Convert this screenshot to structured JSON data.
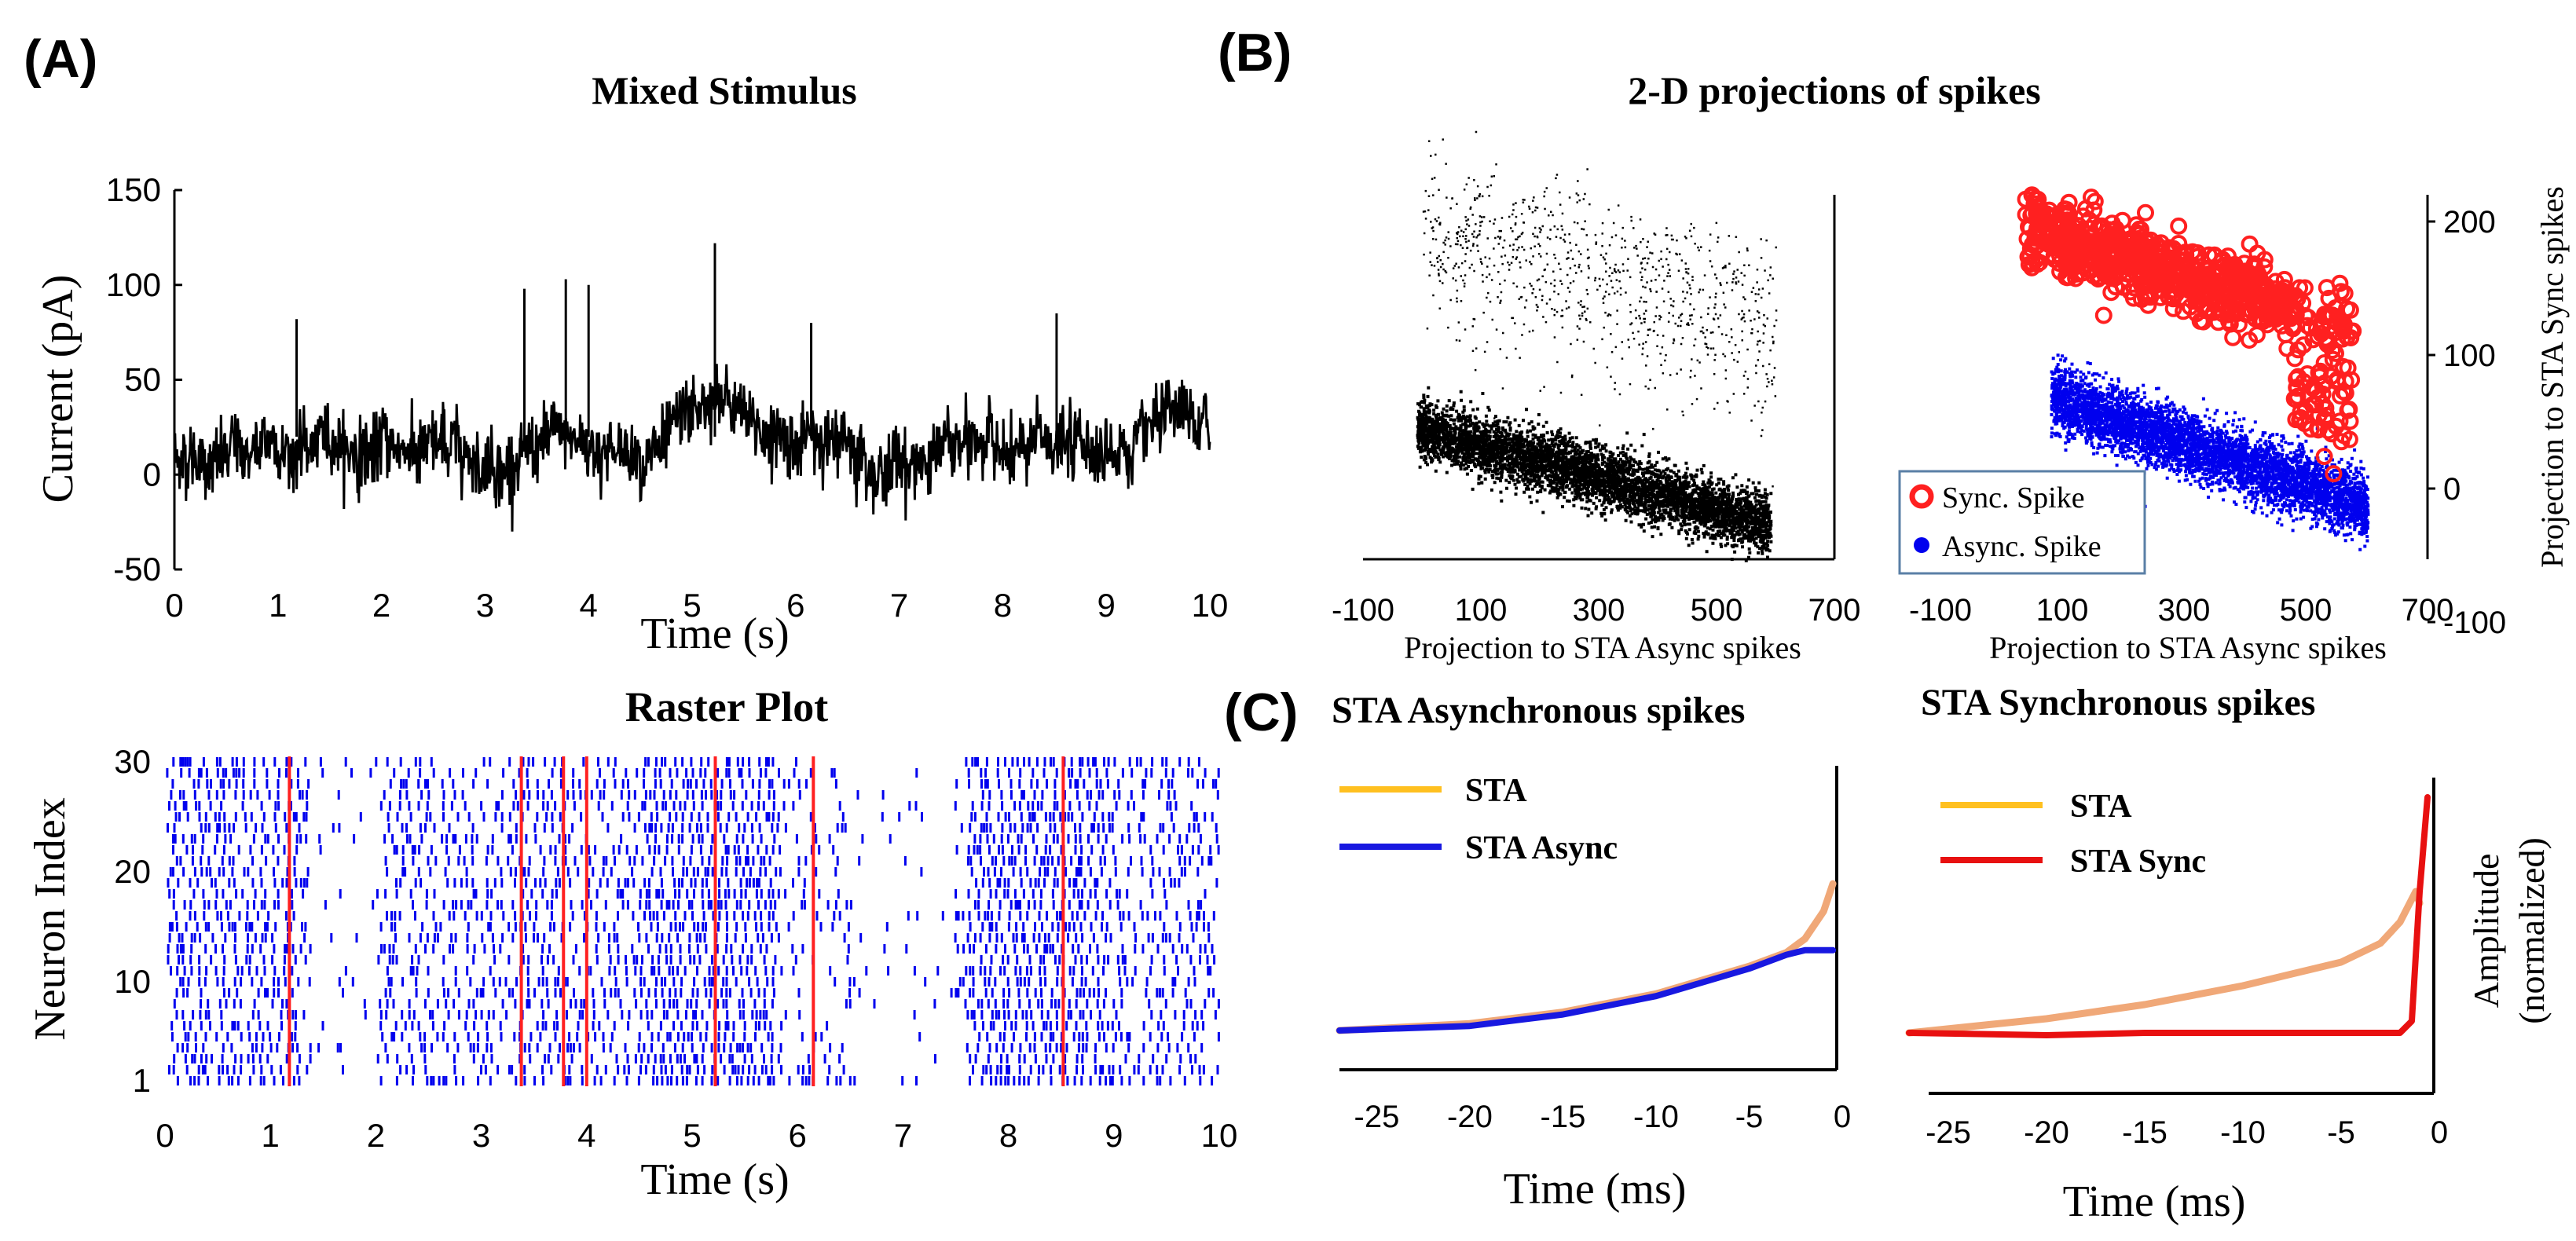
{
  "panel_labels": [
    "(A)",
    "(B)",
    "(C)"
  ],
  "chart_data": [
    {
      "id": "stimulus",
      "type": "line",
      "title": "Mixed Stimulus",
      "xlabel": "Time (s)",
      "ylabel": "Current (pA)",
      "xlim": [
        0,
        10
      ],
      "ylim": [
        -50,
        150
      ],
      "xticks": [
        0,
        1,
        2,
        3,
        4,
        5,
        6,
        7,
        8,
        9,
        10
      ],
      "yticks": [
        150,
        100,
        50,
        0,
        -50
      ],
      "spikes": [
        {
          "t": 1.18,
          "v": 82
        },
        {
          "t": 3.38,
          "v": 98
        },
        {
          "t": 3.78,
          "v": 103
        },
        {
          "t": 4.0,
          "v": 100
        },
        {
          "t": 5.22,
          "v": 122
        },
        {
          "t": 6.15,
          "v": 80
        },
        {
          "t": 8.52,
          "v": 85
        }
      ],
      "series_color": "#000000"
    },
    {
      "id": "raster",
      "type": "scatter",
      "title": "Raster Plot",
      "xlabel": "Time (s)",
      "ylabel": "Neuron Index",
      "xlim": [
        0,
        10
      ],
      "ylim": [
        1,
        30
      ],
      "xticks": [
        0,
        1,
        2,
        3,
        4,
        5,
        6,
        7,
        8,
        9,
        10
      ],
      "yticks": [
        30,
        20,
        10,
        1
      ],
      "sync_times": [
        1.18,
        3.38,
        3.78,
        4.0,
        5.22,
        6.15,
        8.52
      ],
      "async_color": "#0000ee",
      "sync_color": "#ff2020"
    },
    {
      "id": "proj-left",
      "type": "scatter",
      "title": "2-D projections of spikes",
      "xlabel": "Projection to STA Async spikes",
      "xlim": [
        -100,
        700
      ],
      "ylim": [
        -100,
        220
      ],
      "xticks": [
        -100,
        100,
        300,
        500,
        700
      ],
      "clusters": [
        {
          "name": "upper",
          "x_range": [
            0,
            600
          ],
          "y_center": 160
        },
        {
          "name": "lower",
          "x_range": [
            -20,
            600
          ],
          "y_center": 10
        }
      ],
      "color": "#000000"
    },
    {
      "id": "proj-right",
      "type": "scatter",
      "xlabel": "Projection to STA Async spikes",
      "ylabel": "Projection to STA Sync spikes",
      "xlim": [
        -100,
        700
      ],
      "ylim": [
        -100,
        220
      ],
      "xticks": [
        -100,
        100,
        300,
        500,
        700
      ],
      "yticks": [
        200,
        100,
        0,
        -100
      ],
      "legend": [
        {
          "label": "Sync. Spike",
          "color": "#ff2020",
          "marker": "circle"
        },
        {
          "label": "Async. Spike",
          "color": "#0000ee",
          "marker": "dot"
        }
      ],
      "legend_position": "bottom-left"
    },
    {
      "id": "sta-async",
      "type": "line",
      "title": "STA Asynchronous  spikes",
      "xlabel": "Time (ms)",
      "xlim": [
        -27,
        0
      ],
      "xticks": [
        -25,
        -20,
        -15,
        -10,
        -5,
        0
      ],
      "series": [
        {
          "name": "STA",
          "color": "#f0a878",
          "legend_color": "#ffc020",
          "x": [
            -27,
            -20,
            -15,
            -10,
            -5,
            -3,
            -2,
            -1,
            -0.5
          ],
          "y": [
            0.0,
            0.03,
            0.08,
            0.16,
            0.28,
            0.34,
            0.4,
            0.52,
            0.64
          ]
        },
        {
          "name": "STA Async",
          "color": "#1818e0",
          "x": [
            -27,
            -20,
            -15,
            -10,
            -5,
            -3,
            -2,
            -1,
            -0.5
          ],
          "y": [
            0.0,
            0.02,
            0.07,
            0.15,
            0.27,
            0.33,
            0.35,
            0.35,
            0.35
          ]
        }
      ]
    },
    {
      "id": "sta-sync",
      "type": "line",
      "title": "STA Synchronous  spikes",
      "xlabel": "Time (ms)",
      "ylabel": "Amplitude (normalized)",
      "xlim": [
        -27,
        0
      ],
      "xticks": [
        -25,
        -20,
        -15,
        -10,
        -5,
        0
      ],
      "series": [
        {
          "name": "STA",
          "color": "#f0a878",
          "legend_color": "#ffc020",
          "x": [
            -27,
            -20,
            -15,
            -10,
            -5,
            -3,
            -2,
            -1.2,
            -1
          ],
          "y": [
            0.0,
            0.06,
            0.12,
            0.2,
            0.3,
            0.38,
            0.47,
            0.6,
            0.55
          ]
        },
        {
          "name": "STA Sync",
          "color": "#e81010",
          "x": [
            -27,
            -20,
            -15,
            -10,
            -5,
            -2,
            -1.4,
            -1,
            -0.6
          ],
          "y": [
            0.0,
            -0.01,
            0.0,
            0.0,
            0.0,
            0.0,
            0.05,
            0.6,
            1.0
          ]
        }
      ]
    }
  ],
  "labels": {
    "ylabel_amp_1": "Amplitude",
    "ylabel_amp_2": "(normalized)"
  }
}
